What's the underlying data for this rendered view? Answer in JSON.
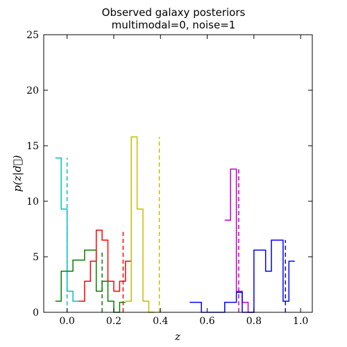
{
  "chart_data": {
    "type": "line",
    "title": "Observed galaxy posteriors",
    "subtitle": "multimodal=0, noise=1",
    "xlabel": "z",
    "ylabel": "p(z|d⃗)",
    "xlim": [
      -0.1,
      1.05
    ],
    "ylim": [
      0,
      25
    ],
    "xticks": [
      0.0,
      0.2,
      0.4,
      0.6,
      0.8,
      1.0
    ],
    "xtick_labels": [
      "0.0",
      "0.2",
      "0.4",
      "0.6",
      "0.8",
      "1.0"
    ],
    "yticks": [
      0,
      5,
      10,
      15,
      20,
      25
    ],
    "ytick_labels": [
      "0",
      "5",
      "10",
      "15",
      "20",
      "25"
    ],
    "grid": false,
    "series": [
      {
        "color": "#00bfbf",
        "kind": "step",
        "edges": [
          -0.05,
          -0.025,
          0.0,
          0.025,
          0.05
        ],
        "values": [
          13.9,
          9.3,
          1.9,
          1.0
        ],
        "true_z": 0.0,
        "true_height": 13.9
      },
      {
        "color": "#008000",
        "kind": "step",
        "edges": [
          -0.05,
          -0.025,
          0.025,
          0.075,
          0.125,
          0.15,
          0.175,
          0.2,
          0.225,
          0.25
        ],
        "values": [
          1.0,
          3.7,
          4.7,
          5.6,
          1.9,
          2.8,
          1.0,
          0.0,
          0.9
        ],
        "true_z": 0.15,
        "true_height": 5.6
      },
      {
        "color": "#ff0000",
        "kind": "step",
        "edges": [
          0.05,
          0.075,
          0.1,
          0.125,
          0.15,
          0.175,
          0.2,
          0.225,
          0.25,
          0.275
        ],
        "values": [
          1.0,
          2.8,
          4.6,
          7.4,
          6.5,
          2.8,
          1.9,
          2.8,
          4.6
        ],
        "true_z": 0.24,
        "true_height": 7.4
      },
      {
        "color": "#bfbf00",
        "kind": "step",
        "edges": [
          0.25,
          0.275,
          0.3,
          0.325,
          0.35,
          0.375
        ],
        "values": [
          1.0,
          15.8,
          9.3,
          1.0,
          0.0
        ],
        "true_z": 0.395,
        "true_height": 15.8
      },
      {
        "color": "#bf00bf",
        "kind": "step",
        "edges": [
          0.675,
          0.7,
          0.725,
          0.75,
          0.775,
          0.8
        ],
        "values": [
          8.3,
          12.9,
          1.9,
          0.9,
          0.0
        ],
        "true_z": 0.735,
        "true_height": 12.9
      },
      {
        "color": "#0000ff",
        "kind": "step",
        "edges": [
          0.525,
          0.575,
          0.675,
          0.725,
          0.75,
          0.775,
          0.8,
          0.85,
          0.875,
          0.925,
          0.95,
          0.975
        ],
        "values": [
          0.9,
          0.0,
          0.9,
          1.8,
          0.0,
          0.0,
          5.6,
          3.7,
          6.5,
          1.0,
          4.6
        ],
        "true_z": 0.935,
        "true_height": 6.5
      }
    ]
  }
}
